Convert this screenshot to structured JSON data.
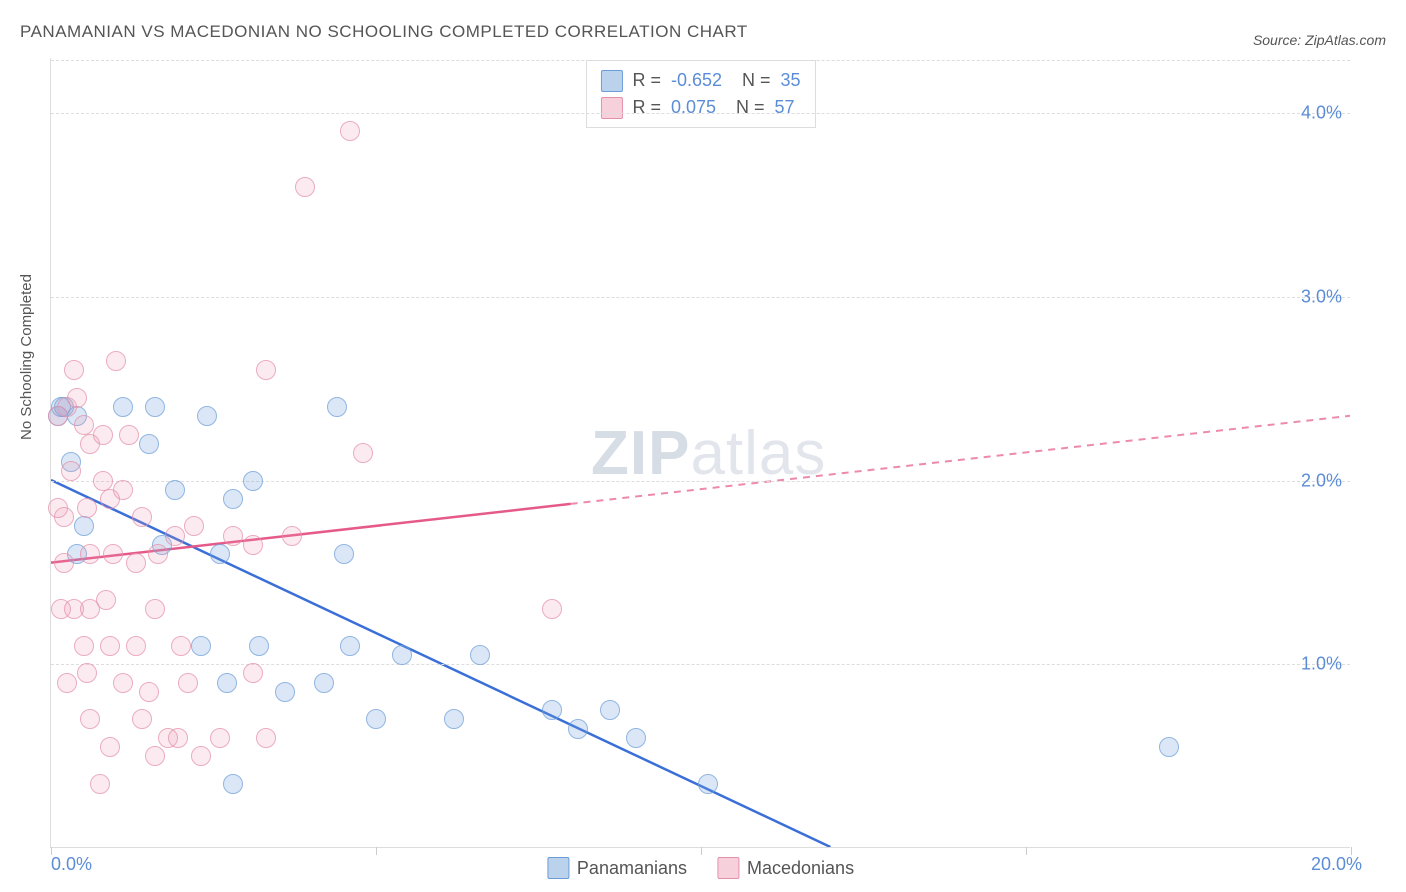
{
  "title": "PANAMANIAN VS MACEDONIAN NO SCHOOLING COMPLETED CORRELATION CHART",
  "source": "Source: ZipAtlas.com",
  "ylabel": "No Schooling Completed",
  "watermark": {
    "bold": "ZIP",
    "rest": "atlas"
  },
  "chart": {
    "type": "scatter",
    "xlim": [
      0,
      20
    ],
    "ylim": [
      0,
      4.3
    ],
    "x_ticks": [
      0,
      5,
      10,
      15,
      20
    ],
    "x_tick_labels": [
      "0.0%",
      "",
      "",
      "",
      "20.0%"
    ],
    "y_gridlines": [
      1.0,
      2.0,
      3.0,
      4.0
    ],
    "y_tick_labels": [
      "1.0%",
      "2.0%",
      "3.0%",
      "4.0%"
    ],
    "background_color": "#ffffff",
    "grid_color": "#dddddd",
    "axis_label_color": "#5b8dd6"
  },
  "series": [
    {
      "name": "Panamanians",
      "color_fill": "rgba(120,165,220,0.35)",
      "color_stroke": "#6b9dd8",
      "trend_color": "#3a6fd8",
      "r": "-0.652",
      "n": "35",
      "trend": {
        "x1": 0,
        "y1": 2.0,
        "x2": 12.0,
        "y2": 0.0,
        "dash_from_x": 12.0
      },
      "points": [
        [
          0.1,
          2.35
        ],
        [
          0.15,
          2.4
        ],
        [
          0.2,
          2.4
        ],
        [
          0.3,
          2.1
        ],
        [
          0.4,
          2.35
        ],
        [
          1.1,
          2.4
        ],
        [
          1.5,
          2.2
        ],
        [
          1.6,
          2.4
        ],
        [
          2.4,
          2.35
        ],
        [
          3.1,
          2.0
        ],
        [
          1.9,
          1.95
        ],
        [
          4.4,
          2.4
        ],
        [
          2.8,
          1.9
        ],
        [
          1.7,
          1.65
        ],
        [
          0.5,
          1.75
        ],
        [
          2.6,
          1.6
        ],
        [
          4.5,
          1.6
        ],
        [
          2.3,
          1.1
        ],
        [
          2.7,
          0.9
        ],
        [
          3.2,
          1.1
        ],
        [
          3.6,
          0.85
        ],
        [
          4.2,
          0.9
        ],
        [
          4.6,
          1.1
        ],
        [
          5.0,
          0.7
        ],
        [
          5.4,
          1.05
        ],
        [
          6.6,
          1.05
        ],
        [
          6.2,
          0.7
        ],
        [
          7.7,
          0.75
        ],
        [
          8.1,
          0.65
        ],
        [
          8.6,
          0.75
        ],
        [
          10.1,
          0.35
        ],
        [
          9.0,
          0.6
        ],
        [
          2.8,
          0.35
        ],
        [
          17.2,
          0.55
        ],
        [
          0.4,
          1.6
        ]
      ]
    },
    {
      "name": "Macedonians",
      "color_fill": "rgba(235,150,175,0.25)",
      "color_stroke": "#e590aa",
      "trend_color": "#e65a8a",
      "r": "0.075",
      "n": "57",
      "trend": {
        "x1": 0,
        "y1": 1.55,
        "x2": 20,
        "y2": 2.35,
        "dash_from_x": 8.0
      },
      "points": [
        [
          0.1,
          2.35
        ],
        [
          0.25,
          2.4
        ],
        [
          0.4,
          2.45
        ],
        [
          1.0,
          2.65
        ],
        [
          0.35,
          2.6
        ],
        [
          4.6,
          3.9
        ],
        [
          3.9,
          3.6
        ],
        [
          3.3,
          2.6
        ],
        [
          4.8,
          2.15
        ],
        [
          0.5,
          2.3
        ],
        [
          0.6,
          2.2
        ],
        [
          0.8,
          2.25
        ],
        [
          1.2,
          2.25
        ],
        [
          0.3,
          2.05
        ],
        [
          0.8,
          2.0
        ],
        [
          0.2,
          1.8
        ],
        [
          0.1,
          1.85
        ],
        [
          0.55,
          1.85
        ],
        [
          0.9,
          1.9
        ],
        [
          1.1,
          1.95
        ],
        [
          1.4,
          1.8
        ],
        [
          1.9,
          1.7
        ],
        [
          2.2,
          1.75
        ],
        [
          2.8,
          1.7
        ],
        [
          3.1,
          1.65
        ],
        [
          3.7,
          1.7
        ],
        [
          0.2,
          1.55
        ],
        [
          0.6,
          1.6
        ],
        [
          0.95,
          1.6
        ],
        [
          1.3,
          1.55
        ],
        [
          1.65,
          1.6
        ],
        [
          0.15,
          1.3
        ],
        [
          0.35,
          1.3
        ],
        [
          0.6,
          1.3
        ],
        [
          0.85,
          1.35
        ],
        [
          1.6,
          1.3
        ],
        [
          7.7,
          1.3
        ],
        [
          0.5,
          1.1
        ],
        [
          0.9,
          1.1
        ],
        [
          1.3,
          1.1
        ],
        [
          2.0,
          1.1
        ],
        [
          0.25,
          0.9
        ],
        [
          0.55,
          0.95
        ],
        [
          1.1,
          0.9
        ],
        [
          1.5,
          0.85
        ],
        [
          2.1,
          0.9
        ],
        [
          3.1,
          0.95
        ],
        [
          0.6,
          0.7
        ],
        [
          1.4,
          0.7
        ],
        [
          1.8,
          0.6
        ],
        [
          0.9,
          0.55
        ],
        [
          1.6,
          0.5
        ],
        [
          2.3,
          0.5
        ],
        [
          0.75,
          0.35
        ],
        [
          1.95,
          0.6
        ],
        [
          2.6,
          0.6
        ],
        [
          3.3,
          0.6
        ]
      ]
    }
  ],
  "legend_top": {
    "rows": [
      {
        "swatch": "blue",
        "r": "-0.652",
        "n": "35"
      },
      {
        "swatch": "pink",
        "r": "0.075",
        "n": "57"
      }
    ]
  },
  "legend_bottom": [
    {
      "swatch": "blue",
      "label": "Panamanians"
    },
    {
      "swatch": "pink",
      "label": "Macedonians"
    }
  ]
}
